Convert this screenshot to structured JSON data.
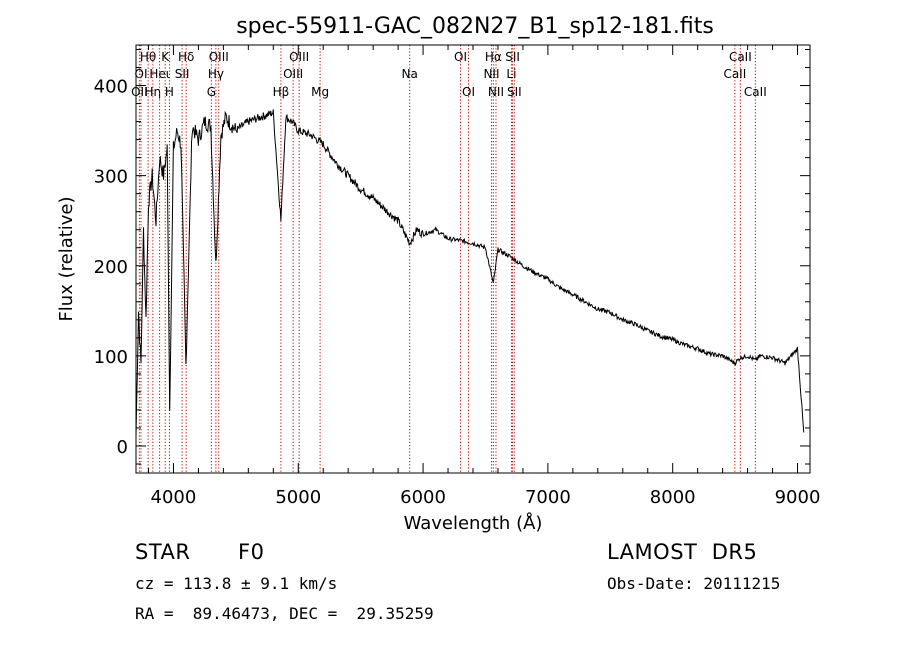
{
  "chart_data": {
    "type": "line",
    "title": "spec-55911-GAC_082N27_B1_sp12-181.fits",
    "xlabel": "Wavelength (Å)",
    "ylabel": "Flux (relative)",
    "xlim": [
      3700,
      9100
    ],
    "ylim": [
      -30,
      445
    ],
    "xticks": [
      4000,
      5000,
      6000,
      7000,
      8000,
      9000
    ],
    "yticks": [
      0,
      100,
      200,
      300,
      400
    ],
    "grid": false,
    "series": [
      {
        "x": [
          3700,
          3720,
          3740,
          3760,
          3780,
          3800,
          3830,
          3860,
          3890,
          3920,
          3950,
          3970,
          4000,
          4030,
          4060,
          4100,
          4150,
          4200,
          4250,
          4300,
          4340,
          4380,
          4420,
          4500,
          4600,
          4700,
          4800,
          4861,
          4900,
          4950,
          5000,
          5100,
          5200,
          5300,
          5400,
          5500,
          5600,
          5700,
          5800,
          5893,
          5950,
          6000,
          6100,
          6200,
          6300,
          6400,
          6500,
          6563,
          6600,
          6700,
          6800,
          6900,
          7000,
          7100,
          7200,
          7300,
          7400,
          7500,
          7600,
          7700,
          7800,
          7900,
          8000,
          8100,
          8200,
          8300,
          8400,
          8498,
          8542,
          8600,
          8662,
          8700,
          8800,
          8900,
          9000,
          9050
        ],
        "values": [
          10,
          150,
          90,
          240,
          140,
          270,
          300,
          250,
          320,
          300,
          330,
          40,
          330,
          350,
          335,
          90,
          355,
          340,
          360,
          355,
          200,
          345,
          365,
          350,
          360,
          365,
          370,
          250,
          365,
          360,
          350,
          345,
          335,
          315,
          300,
          285,
          275,
          262,
          250,
          225,
          240,
          235,
          240,
          230,
          228,
          225,
          220,
          180,
          218,
          210,
          200,
          192,
          185,
          175,
          168,
          160,
          152,
          148,
          140,
          135,
          128,
          122,
          118,
          112,
          108,
          102,
          100,
          92,
          98,
          100,
          95,
          100,
          98,
          92,
          108,
          15
        ]
      }
    ]
  },
  "lines": [
    {
      "label": "Hθ",
      "x": 3797,
      "row": 1
    },
    {
      "label": "OI",
      "x": 3740,
      "row": 2
    },
    {
      "label": "OII",
      "x": 3727,
      "row": 3
    },
    {
      "label": "Hη",
      "x": 3835,
      "row": 3
    },
    {
      "label": "K",
      "x": 3934,
      "row": 1
    },
    {
      "label": "Heι",
      "x": 3889,
      "row": 2
    },
    {
      "label": "H",
      "x": 3968,
      "row": 3
    },
    {
      "label": "Hδ",
      "x": 4102,
      "row": 1
    },
    {
      "label": "SII",
      "x": 4069,
      "row": 2
    },
    {
      "label": "OIII",
      "x": 4363,
      "row": 1
    },
    {
      "label": "Hγ",
      "x": 4340,
      "row": 2
    },
    {
      "label": "G",
      "x": 4304,
      "row": 3
    },
    {
      "label": "Hβ",
      "x": 4861,
      "row": 3
    },
    {
      "label": "OIII",
      "x": 5007,
      "row": 1
    },
    {
      "label": "OIII",
      "x": 4959,
      "row": 2
    },
    {
      "label": "Mg",
      "x": 5175,
      "row": 3
    },
    {
      "label": "Na",
      "x": 5893,
      "row": 2
    },
    {
      "label": "OI",
      "x": 6300,
      "row": 1
    },
    {
      "label": "OI",
      "x": 6364,
      "row": 3
    },
    {
      "label": "Hα",
      "x": 6563,
      "row": 1
    },
    {
      "label": "SII",
      "x": 6717,
      "row": 1
    },
    {
      "label": "NII",
      "x": 6548,
      "row": 2
    },
    {
      "label": "Li",
      "x": 6708,
      "row": 2
    },
    {
      "label": "NII",
      "x": 6584,
      "row": 3
    },
    {
      "label": "SII",
      "x": 6731,
      "row": 3
    },
    {
      "label": "CaII",
      "x": 8542,
      "row": 1
    },
    {
      "label": "CaII",
      "x": 8498,
      "row": 2
    },
    {
      "label": "CaII",
      "x": 8662,
      "row": 3
    }
  ],
  "info": {
    "class": "STAR",
    "subclass": "F0",
    "survey": "LAMOST  DR5",
    "cz": "cz = 113.8 ± 9.1 km/s",
    "obs_date": "Obs-Date: 20111215",
    "coords": "RA =  89.46473, DEC =  29.35259"
  }
}
